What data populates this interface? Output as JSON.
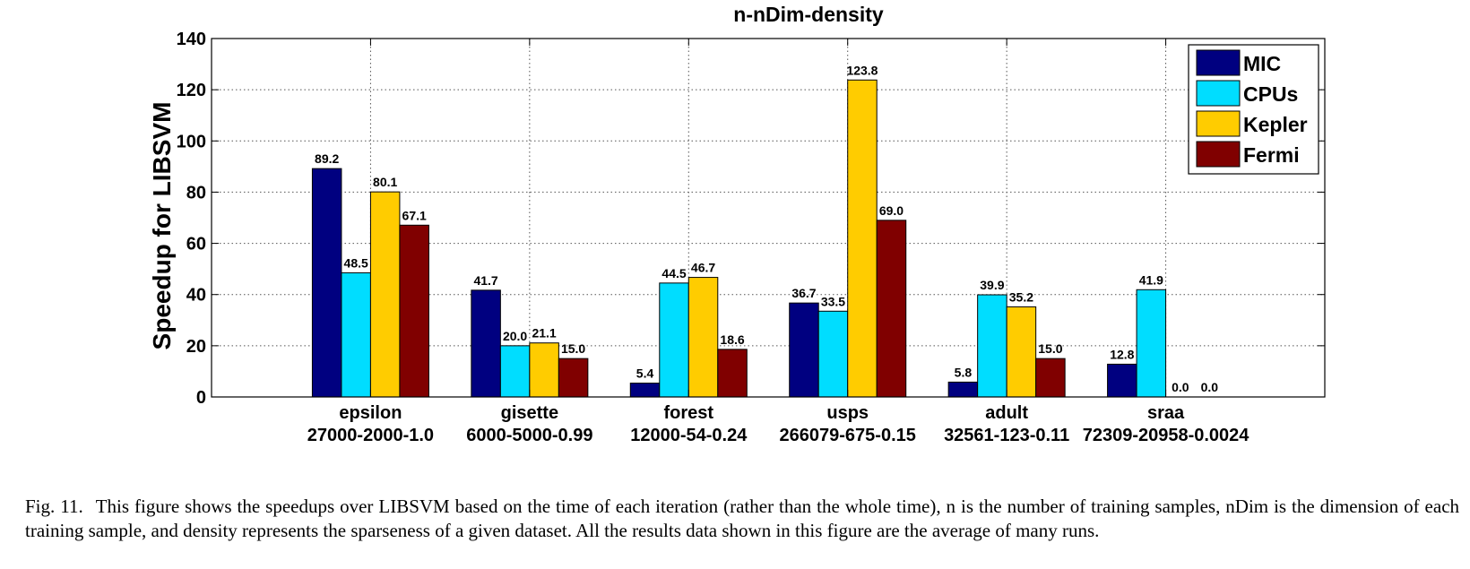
{
  "chart_data": {
    "type": "bar",
    "title": "n-nDim-density",
    "ylabel": "Speedup for LIBSVM",
    "xlabel": "",
    "ylim": [
      0,
      140
    ],
    "yticks": [
      0,
      20,
      40,
      60,
      80,
      100,
      120,
      140
    ],
    "grid": true,
    "legend_position": "top-right",
    "categories": [
      "epsilon",
      "gisette",
      "forest",
      "usps",
      "adult",
      "sraa"
    ],
    "category_sublabels": [
      "27000-2000-1.0",
      "6000-5000-0.99",
      "12000-54-0.24",
      "266079-675-0.15",
      "32561-123-0.11",
      "72309-20958-0.0024"
    ],
    "series": [
      {
        "name": "MIC",
        "color": "#000080",
        "values": [
          89.2,
          41.7,
          5.4,
          36.7,
          5.8,
          12.8
        ],
        "labels": [
          "89.2",
          "41.7",
          "5.4",
          "36.7",
          "5.8",
          "12.8"
        ]
      },
      {
        "name": "CPUs",
        "color": "#00DDFF",
        "values": [
          48.5,
          20.0,
          44.5,
          33.5,
          39.9,
          41.9
        ],
        "labels": [
          "48.5",
          "20.0",
          "44.5",
          "33.5",
          "39.9",
          "41.9"
        ]
      },
      {
        "name": "Kepler",
        "color": "#FFCC00",
        "values": [
          80.1,
          21.1,
          46.7,
          123.8,
          35.2,
          0.0
        ],
        "labels": [
          "80.1",
          "21.1",
          "46.7",
          "123.8",
          "35.2",
          "0.0"
        ]
      },
      {
        "name": "Fermi",
        "color": "#800000",
        "values": [
          67.1,
          15.0,
          18.6,
          69.0,
          15.0,
          0.0
        ],
        "labels": [
          "67.1",
          "15.0",
          "18.6",
          "69.0",
          "15.0",
          "0.0"
        ]
      }
    ]
  },
  "caption": {
    "label": "Fig. 11.",
    "text": "This figure shows the speedups over LIBSVM based on the time of each iteration (rather than the whole time), n is the number of training samples, nDim is the dimension of each training sample, and density represents the sparseness of a given dataset. All the results data shown in this figure are the average of many runs."
  }
}
